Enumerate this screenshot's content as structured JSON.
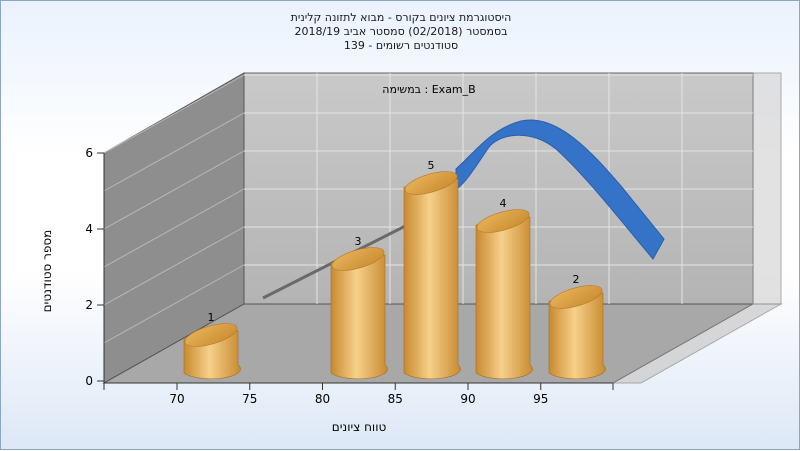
{
  "title_lines": [
    "היסטוגרמת ציונים בקורס - מבוא לתזונה קלינית",
    "בסמסטר  (02/2018)  סמסטר אביב 2018/19",
    "סטודנטים רשומים - 139"
  ],
  "chart_data": {
    "type": "bar",
    "annotation": "במשימה : Exam_B",
    "xlabel": "טווח ציונים",
    "ylabel": "מספר סטודנטים",
    "x_ticks": [
      "70",
      "75",
      "80",
      "85",
      "90",
      "95"
    ],
    "y_ticks": [
      "0",
      "2",
      "4",
      "6"
    ],
    "ylim": [
      0,
      6
    ],
    "categories": [
      "70-75",
      "80-85",
      "85-90",
      "90-95",
      "95-100"
    ],
    "values": [
      1,
      3,
      5,
      4,
      2
    ],
    "data_labels": [
      "1",
      "3",
      "5",
      "4",
      "2"
    ],
    "bar_colors": [
      "#f7d08a",
      "#c88a30"
    ],
    "curve_color": "#3573c8",
    "grid": true
  }
}
